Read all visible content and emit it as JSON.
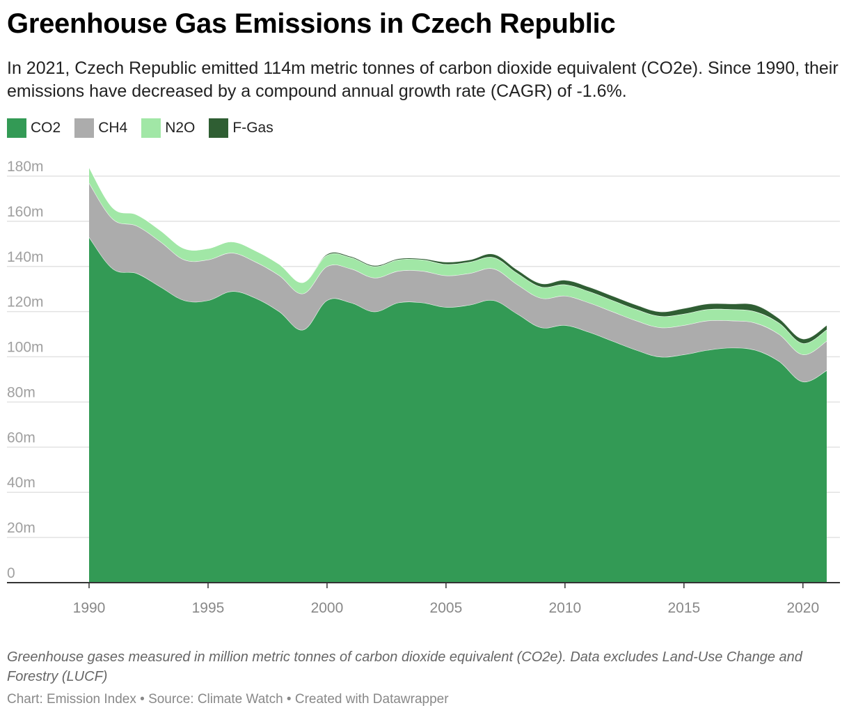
{
  "title": "Greenhouse Gas Emissions in Czech Republic",
  "subtitle": "In 2021, Czech Republic emitted 114m metric tonnes of carbon dioxide equivalent (CO2e). Since 1990, their emissions have decreased by a compound annual growth rate (CAGR) of -1.6%.",
  "legend": [
    {
      "label": "CO2",
      "color": "#339a55"
    },
    {
      "label": "CH4",
      "color": "#acacac"
    },
    {
      "label": "N2O",
      "color": "#a1e7a6"
    },
    {
      "label": "F-Gas",
      "color": "#2f5e33"
    }
  ],
  "notes": "Greenhouse gases measured in million metric tonnes of carbon dioxide equivalent (CO2e). Data excludes Land-Use Change and Forestry (LUCF)",
  "credit": "Chart: Emission Index • Source: Climate Watch • Created with Datawrapper",
  "chart_data": {
    "type": "area",
    "stacked": true,
    "x": [
      1990,
      1991,
      1992,
      1993,
      1994,
      1995,
      1996,
      1997,
      1998,
      1999,
      2000,
      2001,
      2002,
      2003,
      2004,
      2005,
      2006,
      2007,
      2008,
      2009,
      2010,
      2011,
      2012,
      2013,
      2014,
      2015,
      2016,
      2017,
      2018,
      2019,
      2020,
      2021
    ],
    "series": [
      {
        "name": "CO2",
        "color": "#339a55",
        "values": [
          153,
          139,
          137,
          131,
          125,
          125,
          129,
          126,
          120,
          112,
          125,
          124,
          120,
          124,
          124,
          122,
          123,
          125,
          119,
          113,
          114,
          111,
          107,
          103,
          100,
          101,
          103,
          104,
          103,
          98,
          89,
          94
        ]
      },
      {
        "name": "CH4",
        "color": "#acacac",
        "values": [
          24,
          22,
          21,
          20,
          18,
          18,
          17,
          16,
          16,
          16,
          15,
          15,
          15,
          14,
          14,
          14,
          14,
          14,
          13,
          13,
          13,
          13,
          13,
          13,
          13,
          13,
          13,
          12,
          12,
          12,
          12,
          13
        ]
      },
      {
        "name": "N2O",
        "color": "#a1e7a6",
        "values": [
          7,
          5,
          5,
          5,
          5,
          5,
          5,
          5,
          5,
          5,
          5,
          5,
          5,
          5,
          5,
          5,
          5,
          5,
          5,
          5,
          5,
          5,
          5,
          5,
          5,
          5,
          5,
          5,
          5,
          5,
          5,
          5
        ]
      },
      {
        "name": "F-Gas",
        "color": "#2f5e33",
        "values": [
          0,
          0,
          0,
          0,
          0,
          0,
          0,
          0,
          0,
          0,
          0.5,
          0.5,
          0.5,
          0.5,
          0.5,
          1,
          1,
          1.5,
          1.5,
          1.5,
          2,
          2,
          2,
          2,
          2,
          2.5,
          2.5,
          2.5,
          3,
          2,
          2,
          2
        ]
      }
    ],
    "y_ticks": [
      "0",
      "20m",
      "40m",
      "60m",
      "80m",
      "100m",
      "120m",
      "140m",
      "160m",
      "180m"
    ],
    "y_tick_values": [
      0,
      20,
      40,
      60,
      80,
      100,
      120,
      140,
      160,
      180
    ],
    "x_ticks": [
      "1990",
      "1995",
      "2000",
      "2005",
      "2010",
      "2015",
      "2020"
    ],
    "x_tick_values": [
      1990,
      1995,
      2000,
      2005,
      2010,
      2015,
      2020
    ],
    "xlim": [
      1987.5,
      1991.5
    ],
    "ylim": [
      0,
      180
    ],
    "grid": true
  }
}
